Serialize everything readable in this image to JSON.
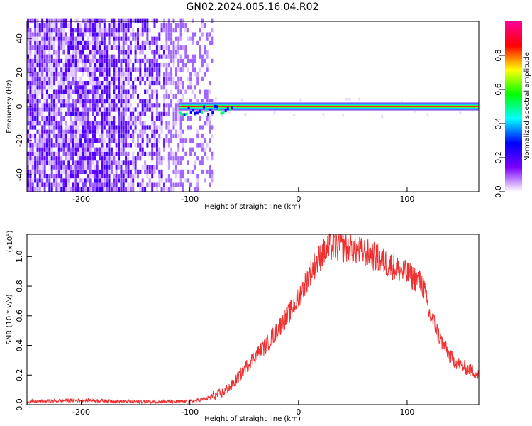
{
  "title": "GN02.2024.005.16.04.R02",
  "chart_data": [
    {
      "type": "heatmap",
      "xlabel": "Height of straight line (km)",
      "ylabel": "Frequency (Hz)",
      "xlim": [
        -250,
        166
      ],
      "ylim": [
        -50,
        50
      ],
      "xticks": [
        -200,
        -100,
        0,
        100
      ],
      "yticks": [
        -40,
        -20,
        0,
        20,
        40
      ],
      "colorbar": {
        "label": "Normalized spectral amplitude",
        "range": [
          0,
          1
        ],
        "ticks": [
          0.0,
          0.2,
          0.4,
          0.6,
          0.8
        ],
        "colors": [
          "#ffffff",
          "#7a00ff",
          "#0000ff",
          "#00ffff",
          "#00ff00",
          "#ffff00",
          "#ff0000",
          "#ff0099"
        ]
      },
      "noise_region": {
        "x": [
          -250,
          -80
        ],
        "freq": [
          -50,
          50
        ],
        "amplitude": [
          0.0,
          0.25
        ]
      },
      "signal_band": {
        "x": [
          -110,
          166
        ],
        "freq": 0,
        "amplitude": 1.0
      }
    },
    {
      "type": "line",
      "xlabel": "Height of straight line (km)",
      "ylabel": "SNR (10 * v/v)",
      "yscale_label": "(x10",
      "yscale_exp": "4",
      "xlim": [
        -250,
        166
      ],
      "ylim": [
        0,
        1.15
      ],
      "xticks": [
        -200,
        -100,
        0,
        100
      ],
      "yticks": [
        0.0,
        0.2,
        0.4,
        0.6,
        0.8,
        1.0
      ],
      "color": "#ee3030",
      "series": [
        {
          "x": [
            -250,
            -200,
            -150,
            -100,
            -85,
            -70,
            -60,
            -50,
            -40,
            -30,
            -20,
            -10,
            0,
            10,
            20,
            30,
            40,
            50,
            60,
            70,
            80,
            90,
            100,
            110,
            115,
            120,
            125,
            130,
            140,
            150,
            160,
            166
          ],
          "y": [
            0.02,
            0.03,
            0.02,
            0.02,
            0.04,
            0.08,
            0.14,
            0.24,
            0.33,
            0.4,
            0.5,
            0.6,
            0.72,
            0.88,
            1.0,
            1.07,
            1.06,
            1.05,
            1.03,
            1.0,
            0.96,
            0.92,
            0.88,
            0.84,
            0.8,
            0.62,
            0.55,
            0.45,
            0.32,
            0.26,
            0.23,
            0.2
          ]
        }
      ]
    }
  ]
}
